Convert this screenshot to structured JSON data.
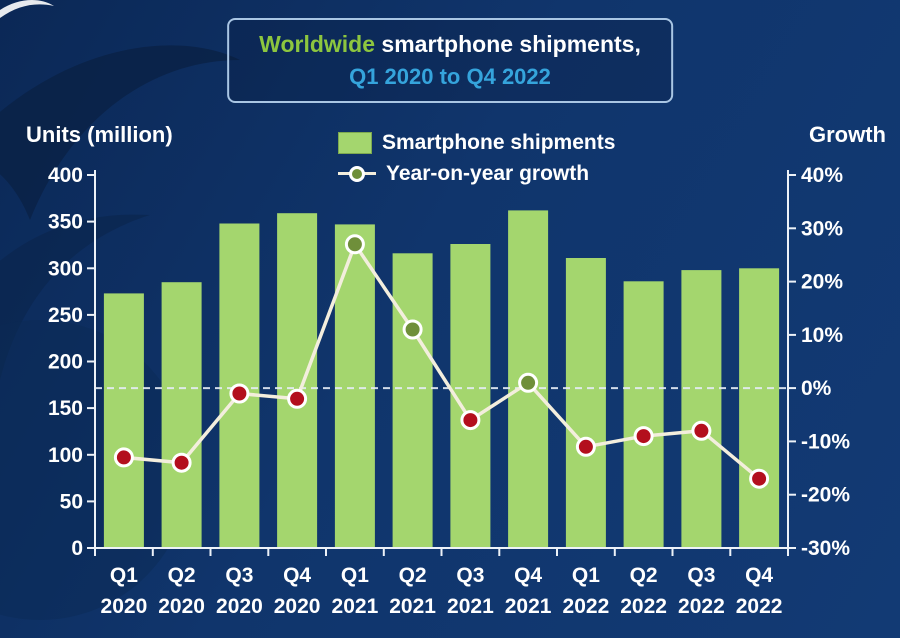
{
  "title": {
    "line1_green": "Worldwide",
    "line1_rest": " smartphone shipments,",
    "line2": "Q1 2020 to Q4 2022"
  },
  "axis_labels": {
    "left": "Units (million)",
    "right": "Growth"
  },
  "legend": {
    "bars": "Smartphone shipments",
    "line": "Year-on-year growth"
  },
  "chart_data": {
    "type": "bar+line",
    "quarters": [
      "Q1",
      "Q2",
      "Q3",
      "Q4",
      "Q1",
      "Q2",
      "Q3",
      "Q4",
      "Q1",
      "Q2",
      "Q3",
      "Q4"
    ],
    "years": [
      "2020",
      "2020",
      "2020",
      "2020",
      "2021",
      "2021",
      "2021",
      "2021",
      "2022",
      "2022",
      "2022",
      "2022"
    ],
    "series": [
      {
        "name": "Smartphone shipments",
        "type": "bar",
        "axis": "left",
        "values": [
          273,
          285,
          348,
          359,
          347,
          316,
          326,
          362,
          311,
          286,
          298,
          300
        ]
      },
      {
        "name": "Year-on-year growth",
        "type": "line",
        "axis": "right",
        "values_pct": [
          -13,
          -14,
          -1,
          -2,
          27,
          11,
          -6,
          1,
          -11,
          -9,
          -8,
          -17
        ]
      }
    ],
    "left_axis": {
      "label": "Units (million)",
      "min": 0,
      "max": 400,
      "ticks": [
        400,
        350,
        300,
        250,
        200,
        150,
        100,
        50,
        0
      ]
    },
    "right_axis": {
      "label": "Growth",
      "min": -30,
      "max": 40,
      "format": "percent",
      "ticks": [
        40,
        30,
        20,
        10,
        0,
        -10,
        -20,
        -30
      ]
    },
    "grid": {
      "zero_line_dashed": true
    },
    "legend_position": "top-center",
    "colors": {
      "background": "#10356c",
      "bar": "#a4d66e",
      "line": "#f3eedd",
      "marker_positive": "#6f8f3a",
      "marker_negative": "#b30f1d",
      "axis": "#edf2f8",
      "zero_line": "#e6edf7",
      "title_green": "#8dc63f",
      "title_blue": "#35a4dc",
      "text": "#ffffff"
    }
  }
}
